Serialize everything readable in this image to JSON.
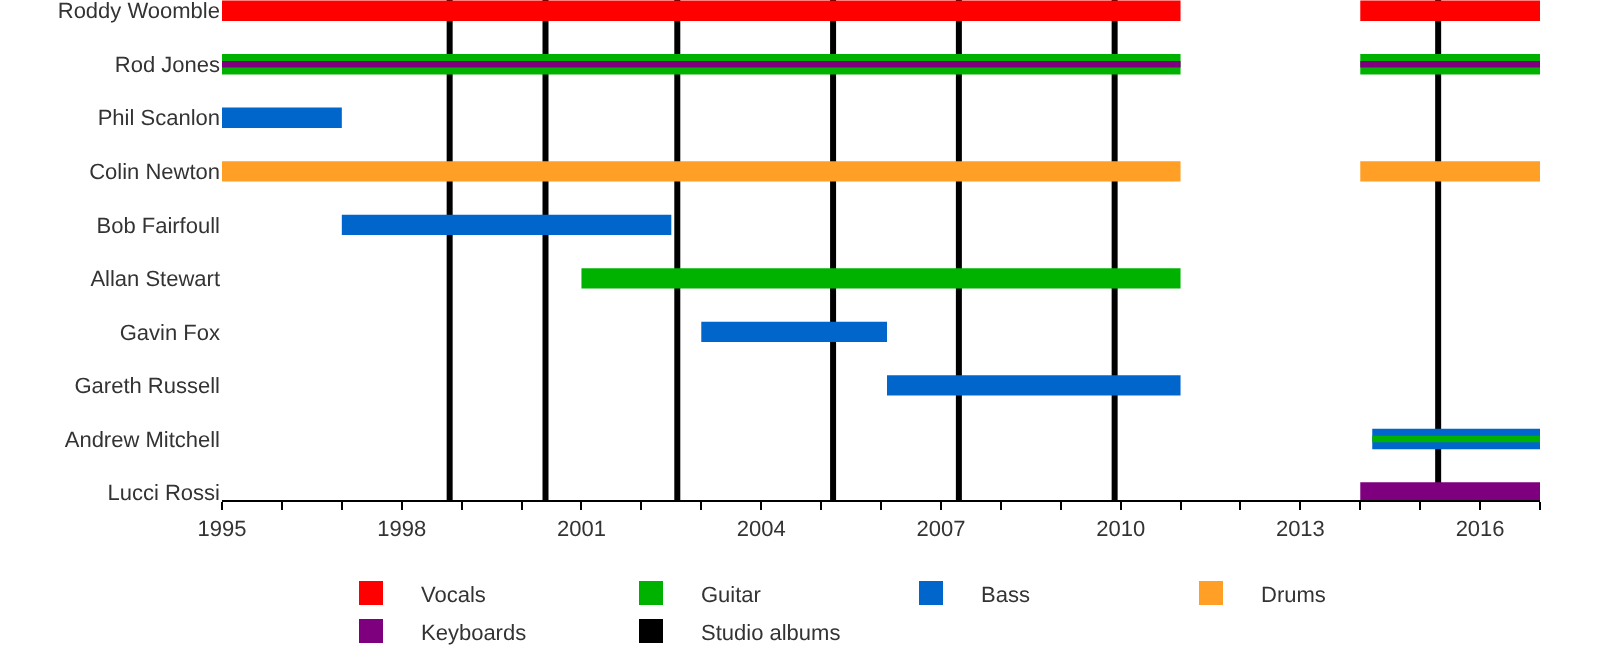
{
  "chart_data": {
    "type": "bar",
    "orientation": "horizontal",
    "categories": [
      "Roddy Woomble",
      "Rod Jones",
      "Phil Scanlon",
      "Colin Newton",
      "Bob Fairfoull",
      "Allan Stewart",
      "Gavin Fox",
      "Gareth Russell",
      "Andrew Mitchell",
      "Lucci Rossi"
    ],
    "series": [
      {
        "name": "Vocals",
        "color": "#ff0000",
        "base": [
          1995,
          null,
          null,
          null,
          null,
          null,
          null,
          null,
          null,
          null
        ],
        "values": [
          16,
          null,
          null,
          null,
          null,
          null,
          null,
          null,
          null,
          null
        ]
      },
      {
        "name": "Guitar",
        "color": "#00b200",
        "base": [
          null,
          1995,
          null,
          null,
          null,
          2001,
          null,
          null,
          null,
          null
        ],
        "values": [
          null,
          16,
          null,
          null,
          null,
          10,
          null,
          null,
          null,
          null
        ]
      },
      {
        "name": "Bass",
        "color": "#0066cc",
        "base": [
          null,
          null,
          1995,
          null,
          1997,
          null,
          2003,
          2006.1,
          2014.2,
          null
        ],
        "values": [
          null,
          null,
          2,
          null,
          5.5,
          null,
          3.1,
          4.9,
          2.8,
          null
        ]
      },
      {
        "name": "Drums",
        "color": "#ff9f26",
        "base": [
          null,
          null,
          null,
          1995,
          null,
          null,
          null,
          null,
          null,
          null
        ],
        "values": [
          null,
          null,
          null,
          16,
          null,
          null,
          null,
          null,
          null,
          null
        ]
      },
      {
        "name": "Keyboards",
        "color": "#7f007f",
        "base": [
          null,
          1995,
          null,
          null,
          null,
          null,
          null,
          null,
          null,
          2014
        ],
        "values": [
          null,
          16,
          null,
          null,
          null,
          null,
          null,
          null,
          null,
          3
        ]
      },
      {
        "color": "#ff0000",
        "base": [
          2014,
          null,
          null,
          null,
          null,
          null,
          null,
          null,
          null,
          null
        ],
        "values": [
          3,
          null,
          null,
          null,
          null,
          null,
          null,
          null,
          null,
          null
        ]
      },
      {
        "color": "#00b200",
        "base": [
          null,
          2014,
          null,
          null,
          null,
          null,
          null,
          null,
          2014.2,
          null
        ],
        "values": [
          null,
          3,
          null,
          null,
          null,
          null,
          null,
          null,
          2.8,
          null
        ]
      },
      {
        "color": "#ff9f26",
        "base": [
          null,
          null,
          null,
          2014,
          null,
          null,
          null,
          null,
          null,
          null
        ],
        "values": [
          null,
          null,
          null,
          3,
          null,
          null,
          null,
          null,
          null,
          null
        ]
      },
      {
        "color": "#7f007f",
        "base": [
          null,
          2014,
          null,
          null,
          null,
          null,
          null,
          null,
          null,
          null
        ],
        "values": [
          null,
          3,
          null,
          null,
          null,
          null,
          null,
          null,
          null,
          null
        ]
      }
    ],
    "ref_lines": [
      {
        "axis": "x",
        "value": 1998.8,
        "label": "Studio albums",
        "color": "#000000"
      },
      {
        "axis": "x",
        "value": 2000.4,
        "color": "#000000"
      },
      {
        "axis": "x",
        "value": 2002.6,
        "color": "#000000"
      },
      {
        "axis": "x",
        "value": 2005.2,
        "color": "#000000"
      },
      {
        "axis": "x",
        "value": 2007.3,
        "color": "#000000"
      },
      {
        "axis": "x",
        "value": 2009.9,
        "color": "#000000"
      },
      {
        "axis": "x",
        "value": 2015.3,
        "color": "#000000"
      }
    ],
    "xlim": [
      1995,
      2017
    ],
    "xticks": [
      1995,
      {
        "value": 1996,
        "label": null
      },
      {
        "value": 1997,
        "label": null
      },
      1998,
      {
        "value": 1999,
        "label": null
      },
      {
        "value": 2000,
        "label": null
      },
      2001,
      {
        "value": 2002,
        "label": null
      },
      {
        "value": 2003,
        "label": null
      },
      2004,
      {
        "value": 2005,
        "label": null
      },
      {
        "value": 2006,
        "label": null
      },
      2007,
      {
        "value": 2008,
        "label": null
      },
      {
        "value": 2009,
        "label": null
      },
      2010,
      {
        "value": 2011,
        "label": null
      },
      {
        "value": 2012,
        "label": null
      },
      2013,
      {
        "value": 2014,
        "label": null
      },
      {
        "value": 2015,
        "label": null
      },
      2016,
      {
        "value": 2017,
        "label": null
      }
    ],
    "grid": false,
    "legend": "bottom"
  }
}
